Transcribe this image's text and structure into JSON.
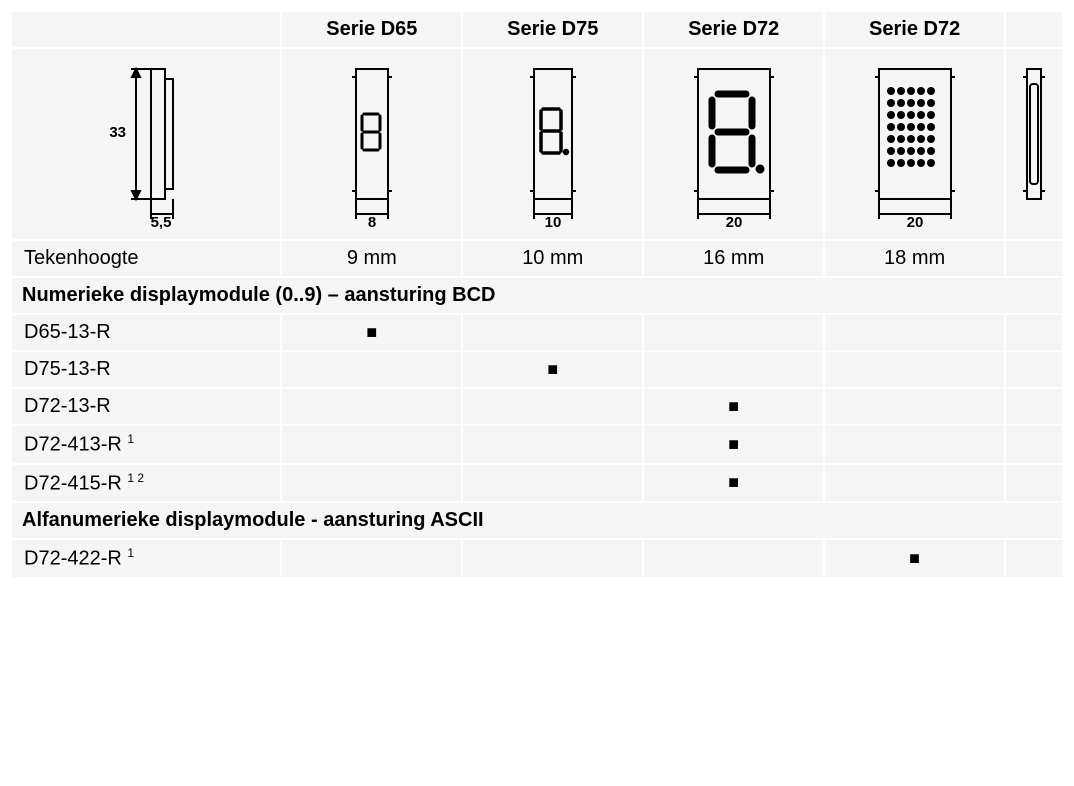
{
  "columns": {
    "headers": [
      "Serie D65",
      "Serie D75",
      "Serie D72",
      "Serie D72"
    ]
  },
  "images": {
    "side_dim_h": "33",
    "side_dim_w": "5,5",
    "col_widths": [
      "8",
      "10",
      "20",
      "20"
    ]
  },
  "tekenhoogte": {
    "label": "Tekenhoogte",
    "values": [
      "9 mm",
      "10 mm",
      "16 mm",
      "18 mm"
    ]
  },
  "sections": [
    {
      "title": "Numerieke displaymodule (0..9) – aansturing BCD",
      "rows": [
        {
          "label": "D65-13-R",
          "sup": "",
          "marks": [
            true,
            false,
            false,
            false
          ]
        },
        {
          "label": "D75-13-R",
          "sup": "",
          "marks": [
            false,
            true,
            false,
            false
          ]
        },
        {
          "label": "D72-13-R",
          "sup": "",
          "marks": [
            false,
            false,
            true,
            false
          ]
        },
        {
          "label": "D72-413-R",
          "sup": "1",
          "marks": [
            false,
            false,
            true,
            false
          ]
        },
        {
          "label": "D72-415-R",
          "sup": "1 2",
          "marks": [
            false,
            false,
            true,
            false
          ]
        }
      ]
    },
    {
      "title": "Alfanumerieke displaymodule - aansturing ASCII",
      "rows": [
        {
          "label": "D72-422-R",
          "sup": "1",
          "marks": [
            false,
            false,
            false,
            true
          ]
        }
      ]
    }
  ],
  "style": {
    "mark_char": "■",
    "bg": "#f5f5f5",
    "fg": "#000000",
    "stroke": "#000000",
    "stroke_width": 2
  }
}
